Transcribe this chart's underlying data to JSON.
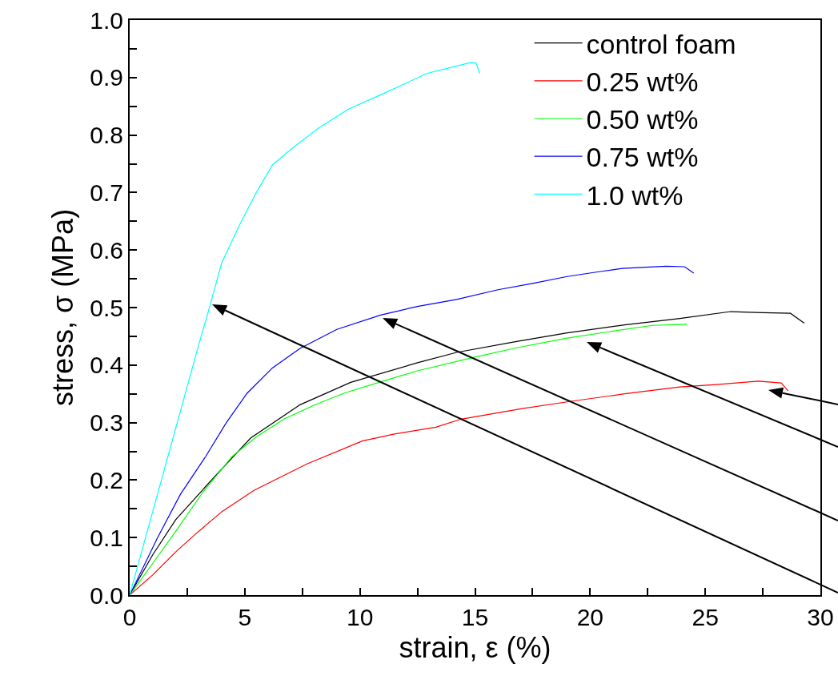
{
  "chart_data": {
    "type": "line",
    "xlabel": "strain, ε (%)",
    "ylabel": "stress, σ (MPa)",
    "xlim": [
      0,
      30
    ],
    "ylim": [
      0,
      1
    ],
    "xticks": [
      0,
      {
        "value": 2.5,
        "label": null
      },
      5,
      {
        "value": 7.5,
        "label": null
      },
      10,
      {
        "value": 12.5,
        "label": null
      },
      15,
      {
        "value": 17.5,
        "label": null
      },
      20,
      {
        "value": 22.5,
        "label": null
      },
      25,
      {
        "value": 27.5,
        "label": null
      },
      30
    ],
    "yticks": [
      {
        "value": 0,
        "label": "0.0"
      },
      {
        "value": 0.05,
        "label": null
      },
      0.1,
      {
        "value": 0.15,
        "label": null
      },
      0.2,
      {
        "value": 0.25,
        "label": null
      },
      0.3,
      {
        "value": 0.35,
        "label": null
      },
      0.4,
      {
        "value": 0.45,
        "label": null
      },
      0.5,
      {
        "value": 0.55,
        "label": null
      },
      0.6,
      {
        "value": 0.65,
        "label": null
      },
      0.7,
      {
        "value": 0.75,
        "label": null
      },
      0.8,
      {
        "value": 0.85,
        "label": null
      },
      0.9,
      {
        "value": 0.95,
        "label": null
      },
      {
        "value": 1,
        "label": "1.0"
      }
    ],
    "grid": false,
    "legend": "top right",
    "marker": "none",
    "line_style": "solid",
    "series": [
      {
        "name": "control foam",
        "color": "#000000",
        "x": [
          0,
          1,
          2,
          3.6,
          5.25,
          7.4,
          9.6,
          12.5,
          14.2,
          16.8,
          19,
          21.5,
          23.9,
          26.1,
          27.5,
          28.7,
          29.3
        ],
        "values": [
          0,
          0.07,
          0.131,
          0.202,
          0.273,
          0.331,
          0.37,
          0.404,
          0.422,
          0.441,
          0.456,
          0.47,
          0.481,
          0.493,
          0.491,
          0.49,
          0.473
        ]
      },
      {
        "name": "0.25 wt%",
        "color": "#ff0000",
        "x": [
          0,
          1,
          2,
          2.8,
          4,
          5.4,
          7.7,
          10.1,
          11.5,
          13.3,
          14.4,
          17,
          19,
          21.5,
          23.9,
          25.5,
          27.3,
          28.3,
          28.6
        ],
        "values": [
          0,
          0.035,
          0.075,
          0.104,
          0.145,
          0.182,
          0.228,
          0.268,
          0.28,
          0.292,
          0.306,
          0.324,
          0.336,
          0.35,
          0.362,
          0.366,
          0.372,
          0.369,
          0.355
        ]
      },
      {
        "name": "0.50 wt%",
        "color": "#00ff00",
        "x": [
          0,
          1,
          2,
          3.2,
          4.45,
          5.5,
          6.7,
          8,
          9.3,
          11,
          12.5,
          14.8,
          16.8,
          19,
          21,
          22.7,
          24.2
        ],
        "values": [
          0,
          0.055,
          0.111,
          0.18,
          0.241,
          0.275,
          0.306,
          0.33,
          0.351,
          0.372,
          0.39,
          0.412,
          0.43,
          0.447,
          0.459,
          0.469,
          0.471
        ]
      },
      {
        "name": "0.75 wt%",
        "color": "#0000ff",
        "x": [
          0,
          1.2,
          2.2,
          3.3,
          4.2,
          5.1,
          6.2,
          7.4,
          9,
          10.9,
          12.5,
          14.2,
          16,
          17.5,
          19,
          20.5,
          21.4,
          23.3,
          24.1,
          24.5
        ],
        "values": [
          0,
          0.099,
          0.175,
          0.241,
          0.3,
          0.351,
          0.395,
          0.429,
          0.462,
          0.487,
          0.502,
          0.514,
          0.531,
          0.542,
          0.554,
          0.563,
          0.568,
          0.572,
          0.571,
          0.56
        ]
      },
      {
        "name": "1.0 wt%",
        "color": "#00ffff",
        "x": [
          0,
          1,
          2,
          3,
          3.5,
          4,
          4.8,
          5.5,
          6.2,
          7,
          8.2,
          9.5,
          10.9,
          12,
          12.9,
          14,
          14.8,
          15.05,
          15.2
        ],
        "values": [
          0,
          0.145,
          0.29,
          0.435,
          0.505,
          0.578,
          0.646,
          0.7,
          0.748,
          0.775,
          0.812,
          0.845,
          0.87,
          0.89,
          0.907,
          0.918,
          0.926,
          0.925,
          0.907
        ]
      }
    ]
  }
}
